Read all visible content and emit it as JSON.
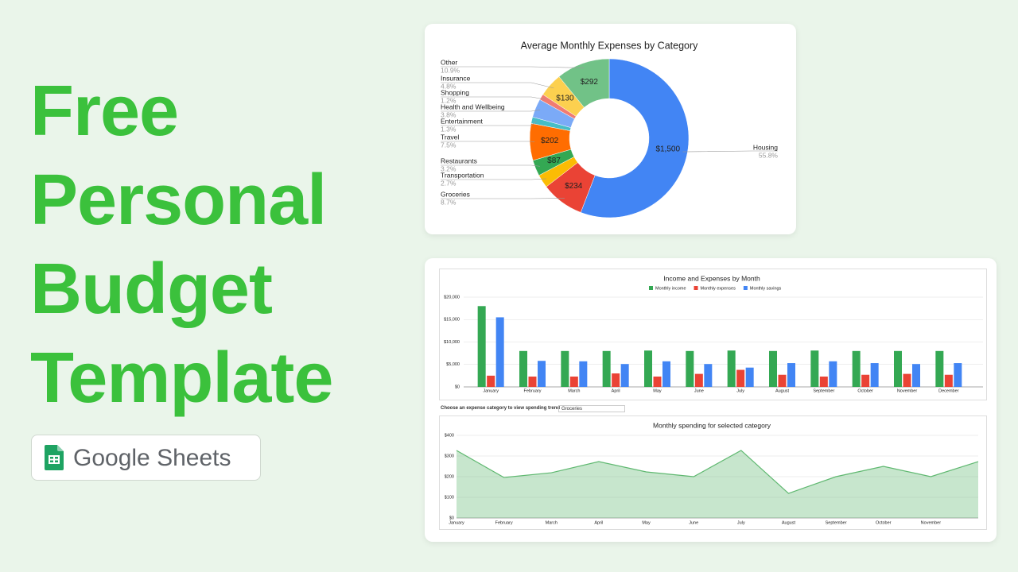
{
  "headline": [
    "Free",
    "Personal",
    "Budget",
    "Template"
  ],
  "badge": "Google Sheets",
  "controls": {
    "dropdown_label": "Choose an expense category to view spending trend",
    "dropdown_value": "Groceries"
  },
  "chart_data": [
    {
      "type": "pie",
      "title": "Average Monthly Expenses by Category",
      "donut": true,
      "categories": [
        "Housing",
        "Groceries",
        "Transportation",
        "Restaurants",
        "Travel",
        "Entertainment",
        "Health and Wellbeing",
        "Shopping",
        "Insurance",
        "Other"
      ],
      "values": [
        1500,
        234,
        73,
        87,
        202,
        35,
        102,
        32,
        130,
        292
      ],
      "value_labels": [
        "$1,500",
        "$234",
        null,
        "$87",
        "$202",
        null,
        null,
        null,
        "$130",
        "$292"
      ],
      "percent_labels": [
        "55.8%",
        "8.7%",
        "2.7%",
        "3.2%",
        "7.5%",
        "1.3%",
        "3.8%",
        "1.2%",
        "4.8%",
        "10.9%"
      ],
      "colors": [
        "#4285f4",
        "#ea4335",
        "#fbbc04",
        "#34a853",
        "#ff6d01",
        "#46bdc6",
        "#7baaf7",
        "#f07b72",
        "#fcd04f",
        "#71c287"
      ]
    },
    {
      "type": "bar",
      "title": "Income and Expenses by Month",
      "categories": [
        "January",
        "February",
        "March",
        "April",
        "May",
        "June",
        "July",
        "August",
        "September",
        "October",
        "November",
        "December"
      ],
      "series": [
        {
          "name": "Monthly income",
          "color": "#34a853",
          "values": [
            18000,
            8000,
            8000,
            8000,
            8100,
            8000,
            8100,
            8000,
            8100,
            8000,
            8000,
            8000
          ]
        },
        {
          "name": "Monthly expenses",
          "color": "#ea4335",
          "values": [
            2500,
            2300,
            2300,
            3000,
            2300,
            2900,
            3800,
            2700,
            2300,
            2700,
            2900,
            2700
          ]
        },
        {
          "name": "Monthly savings",
          "color": "#4285f4",
          "values": [
            15500,
            5800,
            5700,
            5100,
            5700,
            5100,
            4300,
            5300,
            5700,
            5300,
            5100,
            5300
          ]
        }
      ],
      "ylim": [
        0,
        20000
      ],
      "yticks": [
        {
          "value": 0,
          "label": "$0"
        },
        {
          "value": 5000,
          "label": "$5,000"
        },
        {
          "value": 10000,
          "label": "$10,000"
        },
        {
          "value": 15000,
          "label": "$15,000"
        },
        {
          "value": 20000,
          "label": "$20,000"
        }
      ],
      "grid": true,
      "legend": "top"
    },
    {
      "type": "area",
      "title": "Monthly spending for selected category",
      "color": "#5fb870",
      "categories": [
        "January",
        "February",
        "March",
        "April",
        "May",
        "June",
        "July",
        "August",
        "September",
        "October",
        "November",
        null
      ],
      "values": [
        327,
        196,
        219,
        273,
        223,
        200,
        327,
        119,
        200,
        250,
        200,
        273
      ],
      "ylim": [
        0,
        400
      ],
      "yticks": [
        {
          "value": 0,
          "label": "$0"
        },
        {
          "value": 100,
          "label": "$100"
        },
        {
          "value": 200,
          "label": "$200"
        },
        {
          "value": 300,
          "label": "$300"
        },
        {
          "value": 400,
          "label": "$400"
        }
      ],
      "grid": true
    }
  ]
}
